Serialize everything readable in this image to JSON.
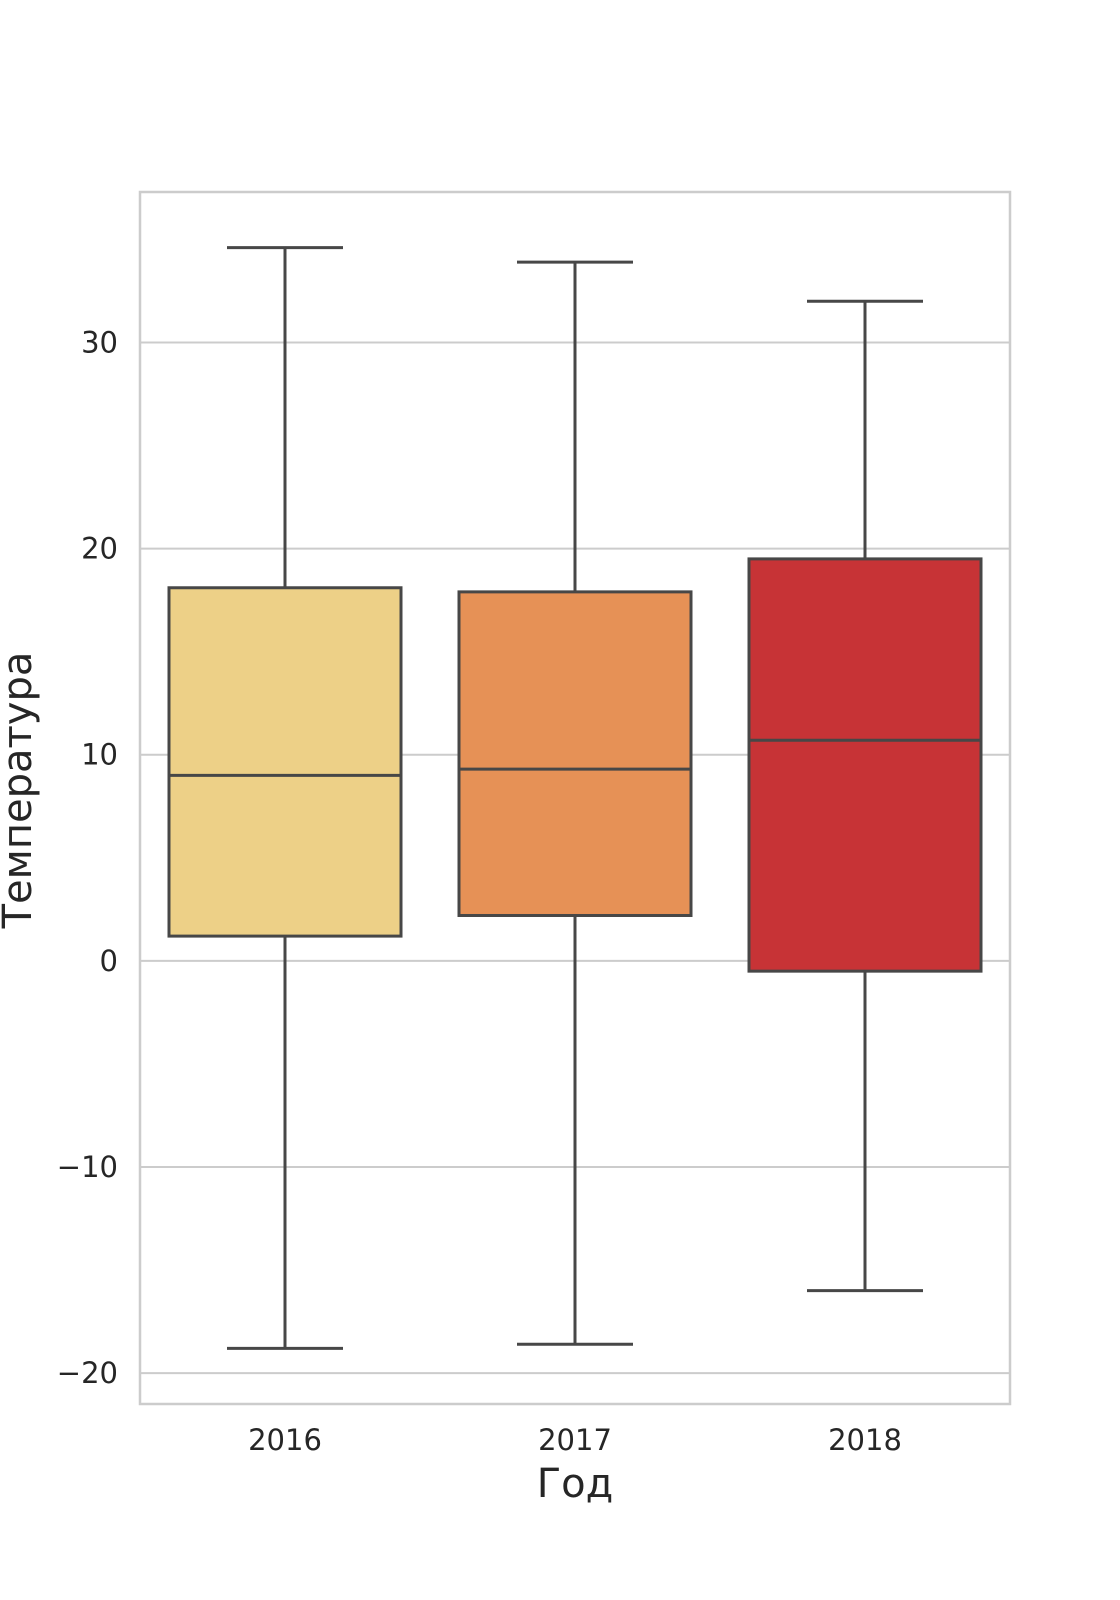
{
  "chart_data": {
    "type": "box",
    "xlabel": "Год",
    "ylabel": "Температура",
    "ylim": [
      -21.5,
      37.3
    ],
    "yticks": [
      -20,
      -10,
      0,
      10,
      20,
      30
    ],
    "ytick_labels": [
      "−20",
      "−10",
      "0",
      "10",
      "20",
      "30"
    ],
    "grid": "horizontal",
    "categories": [
      "2016",
      "2017",
      "2018"
    ],
    "boxes": [
      {
        "category": "2016",
        "whisker_low": -18.8,
        "q1": 1.2,
        "median": 9.0,
        "q3": 18.1,
        "whisker_high": 34.6,
        "color": "#edd087"
      },
      {
        "category": "2017",
        "whisker_low": -18.6,
        "q1": 2.2,
        "median": 9.3,
        "q3": 17.9,
        "whisker_high": 33.9,
        "color": "#e69156"
      },
      {
        "category": "2018",
        "whisker_low": -16.0,
        "q1": -0.5,
        "median": 10.7,
        "q3": 19.5,
        "whisker_high": 32.0,
        "color": "#c73336"
      }
    ],
    "colors": {
      "line": "#474747",
      "grid": "#cccccc",
      "frame": "#cccccc"
    }
  }
}
